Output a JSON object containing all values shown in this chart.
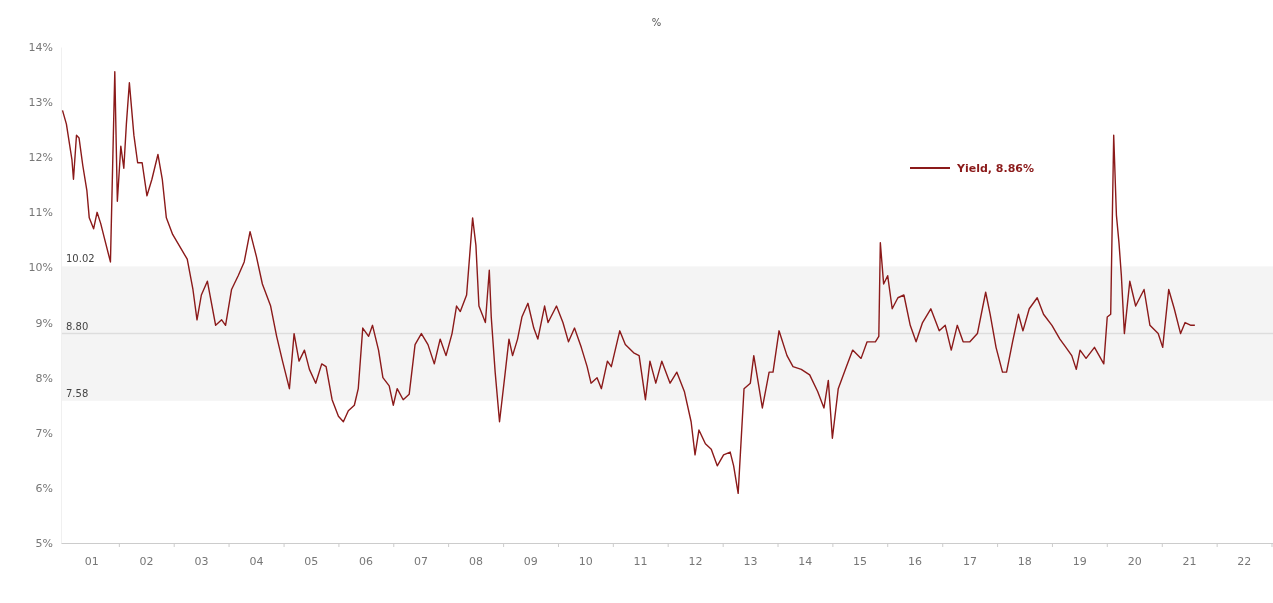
{
  "chart_data": {
    "type": "line",
    "subtitle": "%",
    "x": [
      "2000-12-22",
      "2001-01-17",
      "2001-02-23",
      "2001-03-05",
      "2001-03-25",
      "2001-04-11",
      "2001-05-06",
      "2001-06-02",
      "2001-06-18",
      "2001-07-17",
      "2001-08-09",
      "2001-09-02",
      "2001-09-25",
      "2001-11-06",
      "2001-12-05",
      "2001-12-22",
      "2002-01-14",
      "2002-02-03",
      "2002-02-20",
      "2002-03-12",
      "2002-04-11",
      "2002-05-06",
      "2002-06-05",
      "2002-07-07",
      "2002-08-09",
      "2002-09-18",
      "2002-10-17",
      "2002-11-13",
      "2002-12-25",
      "2003-02-06",
      "2003-04-01",
      "2003-05-09",
      "2003-06-05",
      "2003-07-04",
      "2003-08-13",
      "2003-10-07",
      "2003-11-16",
      "2003-12-12",
      "2004-01-21",
      "2004-03-05",
      "2004-04-14",
      "2004-05-23",
      "2004-07-04",
      "2004-08-13",
      "2004-10-07",
      "2004-11-16",
      "2004-12-25",
      "2005-02-09",
      "2005-03-12",
      "2005-04-14",
      "2005-05-20",
      "2005-06-22",
      "2005-08-03",
      "2005-09-12",
      "2005-10-11",
      "2005-11-20",
      "2006-01-01",
      "2006-02-03",
      "2006-03-08",
      "2006-04-17",
      "2006-05-13",
      "2006-06-12",
      "2006-07-21",
      "2006-08-16",
      "2006-09-25",
      "2006-10-24",
      "2006-12-05",
      "2007-01-01",
      "2007-01-27",
      "2007-03-08",
      "2007-04-17",
      "2007-05-26",
      "2007-07-07",
      "2007-08-20",
      "2007-10-01",
      "2007-11-09",
      "2007-12-18",
      "2008-01-27",
      "2008-02-26",
      "2008-03-22",
      "2008-05-03",
      "2008-06-12",
      "2008-07-04",
      "2008-07-24",
      "2008-09-05",
      "2008-10-01",
      "2008-10-14",
      "2008-11-09",
      "2008-12-08",
      "2009-01-11",
      "2009-02-09",
      "2009-03-05",
      "2009-04-07",
      "2009-05-06",
      "2009-06-15",
      "2009-07-24",
      "2009-08-20",
      "2009-10-04",
      "2009-10-27",
      "2009-12-22",
      "2010-02-03",
      "2010-03-12",
      "2010-04-21",
      "2010-06-05",
      "2010-07-14",
      "2010-08-09",
      "2010-09-18",
      "2010-10-17",
      "2010-11-26",
      "2010-12-22",
      "2011-02-16",
      "2011-03-25",
      "2011-05-20",
      "2011-06-25",
      "2011-08-06",
      "2011-09-05",
      "2011-10-14",
      "2011-11-23",
      "2012-01-17",
      "2012-03-02",
      "2012-04-21",
      "2012-06-05",
      "2012-07-01",
      "2012-07-27",
      "2012-09-08",
      "2012-10-17",
      "2012-11-26",
      "2013-01-07",
      "2013-02-20",
      "2013-03-15",
      "2013-04-14",
      "2013-05-23",
      "2013-07-04",
      "2013-07-27",
      "2013-09-22",
      "2013-11-06",
      "2013-12-02",
      "2014-01-11",
      "2014-03-05",
      "2014-04-14",
      "2014-06-08",
      "2014-08-03",
      "2014-09-25",
      "2014-11-06",
      "2014-12-05",
      "2015-01-01",
      "2015-02-09",
      "2015-04-04",
      "2015-05-16",
      "2015-07-11",
      "2015-08-20",
      "2015-10-14",
      "2015-11-06",
      "2015-11-16",
      "2015-12-08",
      "2016-01-04",
      "2016-02-03",
      "2016-03-12",
      "2016-04-21",
      "2016-06-02",
      "2016-07-11",
      "2016-08-23",
      "2016-10-17",
      "2016-12-12",
      "2017-01-21",
      "2017-03-02",
      "2017-04-11",
      "2017-05-20",
      "2017-07-04",
      "2017-08-23",
      "2017-10-17",
      "2017-11-16",
      "2017-12-25",
      "2018-02-06",
      "2018-03-05",
      "2018-04-14",
      "2018-05-23",
      "2018-06-22",
      "2018-08-03",
      "2018-09-25",
      "2018-11-06",
      "2019-01-01",
      "2019-02-23",
      "2019-04-04",
      "2019-05-13",
      "2019-06-12",
      "2019-07-07",
      "2019-08-16",
      "2019-10-11",
      "2019-12-12",
      "2020-01-04",
      "2020-01-27",
      "2020-02-16",
      "2020-03-05",
      "2020-03-22",
      "2020-04-07",
      "2020-04-27",
      "2020-06-02",
      "2020-07-11",
      "2020-09-05",
      "2020-10-14",
      "2020-12-08",
      "2021-01-07",
      "2021-02-16",
      "2021-03-25",
      "2021-05-06",
      "2021-06-05",
      "2021-07-14",
      "2021-08-09"
    ],
    "series": [
      {
        "name": "Yield, 8.86%",
        "color": "#8b1a1a",
        "values": [
          12.85,
          12.6,
          11.95,
          11.6,
          12.4,
          12.35,
          11.85,
          11.4,
          10.9,
          10.7,
          11,
          10.8,
          10.55,
          10.1,
          13.55,
          11.2,
          12.2,
          11.8,
          12.6,
          13.35,
          12.4,
          11.9,
          11.9,
          11.3,
          11.6,
          12.05,
          11.6,
          10.9,
          10.6,
          10.4,
          10.15,
          9.6,
          9.05,
          9.5,
          9.75,
          8.95,
          9.05,
          8.95,
          9.6,
          9.85,
          10.1,
          10.65,
          10.2,
          9.7,
          9.3,
          8.75,
          8.3,
          7.8,
          8.8,
          8.3,
          8.5,
          8.15,
          7.9,
          8.25,
          8.2,
          7.6,
          7.3,
          7.2,
          7.4,
          7.5,
          7.8,
          8.9,
          8.75,
          8.95,
          8.5,
          8,
          7.85,
          7.5,
          7.8,
          7.6,
          7.7,
          8.6,
          8.8,
          8.6,
          8.25,
          8.7,
          8.4,
          8.8,
          9.3,
          9.2,
          9.5,
          10.9,
          10.4,
          9.3,
          9,
          9.95,
          9.1,
          8.1,
          7.2,
          8,
          8.7,
          8.4,
          8.7,
          9.1,
          9.35,
          8.9,
          8.7,
          9.3,
          9,
          9.3,
          9,
          8.65,
          8.9,
          8.55,
          8.2,
          7.9,
          8,
          7.8,
          8.3,
          8.2,
          8.85,
          8.6,
          8.45,
          8.4,
          7.6,
          8.3,
          7.9,
          8.3,
          7.9,
          8.1,
          7.75,
          7.2,
          6.6,
          7.05,
          6.8,
          6.7,
          6.4,
          6.6,
          6.65,
          6.4,
          5.9,
          7.8,
          7.9,
          8.4,
          7.45,
          8.1,
          8.1,
          8.85,
          8.4,
          8.2,
          8.15,
          8.05,
          7.75,
          7.45,
          7.95,
          6.9,
          7.8,
          8.2,
          8.5,
          8.35,
          8.65,
          8.65,
          8.75,
          10.45,
          9.7,
          9.85,
          9.25,
          9.45,
          9.5,
          8.95,
          8.65,
          9,
          9.25,
          8.85,
          8.95,
          8.5,
          8.95,
          8.65,
          8.65,
          8.8,
          9.55,
          9.15,
          8.55,
          8.1,
          8.1,
          8.65,
          9.15,
          8.85,
          9.25,
          9.45,
          9.15,
          8.95,
          8.7,
          8.55,
          8.4,
          8.15,
          8.5,
          8.35,
          8.55,
          8.25,
          9.1,
          9.15,
          12.4,
          10.95,
          10.45,
          9.85,
          8.8,
          9.75,
          9.3,
          9.6,
          8.95,
          8.8,
          8.55,
          9.6,
          9.25,
          8.8,
          9,
          8.95,
          8.95
        ]
      }
    ],
    "xlim": [
      "2000-12-12",
      "2023-01-11"
    ],
    "xticks": [
      {
        "value": "2001-07-01",
        "label": "01"
      },
      {
        "value": "2002-07-01",
        "label": "02"
      },
      {
        "value": "2003-07-01",
        "label": "03"
      },
      {
        "value": "2004-07-01",
        "label": "04"
      },
      {
        "value": "2005-07-01",
        "label": "05"
      },
      {
        "value": "2006-07-01",
        "label": "06"
      },
      {
        "value": "2007-07-01",
        "label": "07"
      },
      {
        "value": "2008-07-01",
        "label": "08"
      },
      {
        "value": "2009-07-01",
        "label": "09"
      },
      {
        "value": "2010-07-01",
        "label": "10"
      },
      {
        "value": "2011-07-01",
        "label": "11"
      },
      {
        "value": "2012-07-01",
        "label": "12"
      },
      {
        "value": "2013-07-01",
        "label": "13"
      },
      {
        "value": "2014-07-01",
        "label": "14"
      },
      {
        "value": "2015-07-01",
        "label": "15"
      },
      {
        "value": "2016-07-01",
        "label": "16"
      },
      {
        "value": "2017-07-01",
        "label": "17"
      },
      {
        "value": "2018-07-01",
        "label": "18"
      },
      {
        "value": "2019-07-01",
        "label": "19"
      },
      {
        "value": "2020-07-01",
        "label": "20"
      },
      {
        "value": "2021-07-01",
        "label": "21"
      },
      {
        "value": "2022-07-01",
        "label": "22"
      },
      {
        "value": "2002-01-01",
        "label": null
      },
      {
        "value": "2003-01-01",
        "label": null
      },
      {
        "value": "2004-01-01",
        "label": null
      },
      {
        "value": "2005-01-01",
        "label": null
      },
      {
        "value": "2006-01-01",
        "label": null
      },
      {
        "value": "2007-01-01",
        "label": null
      },
      {
        "value": "2008-01-01",
        "label": null
      },
      {
        "value": "2009-01-01",
        "label": null
      },
      {
        "value": "2010-01-01",
        "label": null
      },
      {
        "value": "2011-01-01",
        "label": null
      },
      {
        "value": "2012-01-01",
        "label": null
      },
      {
        "value": "2013-01-01",
        "label": null
      },
      {
        "value": "2014-01-01",
        "label": null
      },
      {
        "value": "2015-01-01",
        "label": null
      },
      {
        "value": "2016-01-01",
        "label": null
      },
      {
        "value": "2017-01-01",
        "label": null
      },
      {
        "value": "2018-01-01",
        "label": null
      },
      {
        "value": "2019-01-01",
        "label": null
      },
      {
        "value": "2020-01-01",
        "label": null
      },
      {
        "value": "2021-01-01",
        "label": null
      },
      {
        "value": "2022-01-01",
        "label": null
      },
      {
        "value": "2023-01-01",
        "label": null
      }
    ],
    "ylim": [
      5,
      14
    ],
    "yticks": [
      {
        "value": 5,
        "label": "5%"
      },
      {
        "value": 6,
        "label": "6%"
      },
      {
        "value": 7,
        "label": "7%"
      },
      {
        "value": 8,
        "label": "8%"
      },
      {
        "value": 9,
        "label": "9%"
      },
      {
        "value": 10,
        "label": "10%"
      },
      {
        "value": 11,
        "label": "11%"
      },
      {
        "value": 12,
        "label": "12%"
      },
      {
        "value": 13,
        "label": "13%"
      },
      {
        "value": 14,
        "label": "14%"
      }
    ],
    "bands": [
      {
        "axis": "y",
        "from": 7.58,
        "to": 10.02,
        "color": "#f4f4f4"
      }
    ],
    "ref_lines": [
      {
        "axis": "y",
        "value": 8.8,
        "label": "8.80",
        "color": "#dddddd"
      }
    ],
    "annotations": [
      {
        "text": "10.02",
        "x": "2000-12-12",
        "y": 10.02
      },
      {
        "text": "7.58",
        "x": "2000-12-12",
        "y": 7.58
      }
    ],
    "legend": "top right",
    "line_style": "solid",
    "grid": false
  }
}
